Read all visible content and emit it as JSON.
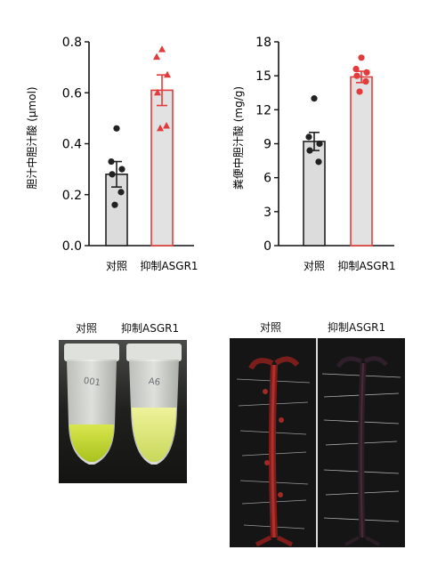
{
  "chart_data": [
    {
      "type": "bar",
      "ylabel": "胆汁中胆汁酸 (μmol)",
      "categories": [
        "对照",
        "抑制ASGR1"
      ],
      "yticks": [
        "0.0",
        "0.2",
        "0.4",
        "0.6",
        "0.8"
      ],
      "ylim": [
        0,
        0.8
      ],
      "series": [
        {
          "values": [
            0.28,
            0.61
          ],
          "error": [
            0.05,
            0.06
          ]
        }
      ],
      "points": [
        [
          0.46,
          0.33,
          0.3,
          0.28,
          0.21,
          0.16
        ],
        [
          0.77,
          0.74,
          0.67,
          0.6,
          0.47,
          0.46
        ]
      ],
      "bar_fills": [
        "#dcdcdc",
        "#e2e2e2"
      ],
      "bar_strokes": [
        "#222222",
        "#e23b3b"
      ],
      "marker_colors": [
        "#222222",
        "#e23b3b"
      ],
      "marker_shapes": [
        "circle",
        "triangle"
      ]
    },
    {
      "type": "bar",
      "ylabel": "粪便中胆汁酸 (mg/g)",
      "categories": [
        "对照",
        "抑制ASGR1"
      ],
      "yticks": [
        "0",
        "3",
        "6",
        "9",
        "12",
        "15",
        "18"
      ],
      "ylim": [
        0,
        18
      ],
      "series": [
        {
          "values": [
            9.2,
            14.9
          ],
          "error": [
            0.8,
            0.5
          ]
        }
      ],
      "points": [
        [
          13.0,
          9.6,
          9.0,
          8.4,
          7.4
        ],
        [
          16.6,
          15.6,
          15.3,
          15.0,
          14.5,
          13.6
        ]
      ],
      "bar_fills": [
        "#dcdcdc",
        "#e2e2e2"
      ],
      "bar_strokes": [
        "#222222",
        "#e23b3b"
      ],
      "marker_colors": [
        "#222222",
        "#e23b3b"
      ],
      "marker_shapes": [
        "circle",
        "circle"
      ]
    }
  ],
  "photos": {
    "tubes": {
      "label_left": "对照",
      "label_right": "抑制ASGR1",
      "tube_marks": [
        "001",
        "A6"
      ]
    },
    "intestines": {
      "label_left": "对照",
      "label_right": "抑制ASGR1"
    }
  }
}
